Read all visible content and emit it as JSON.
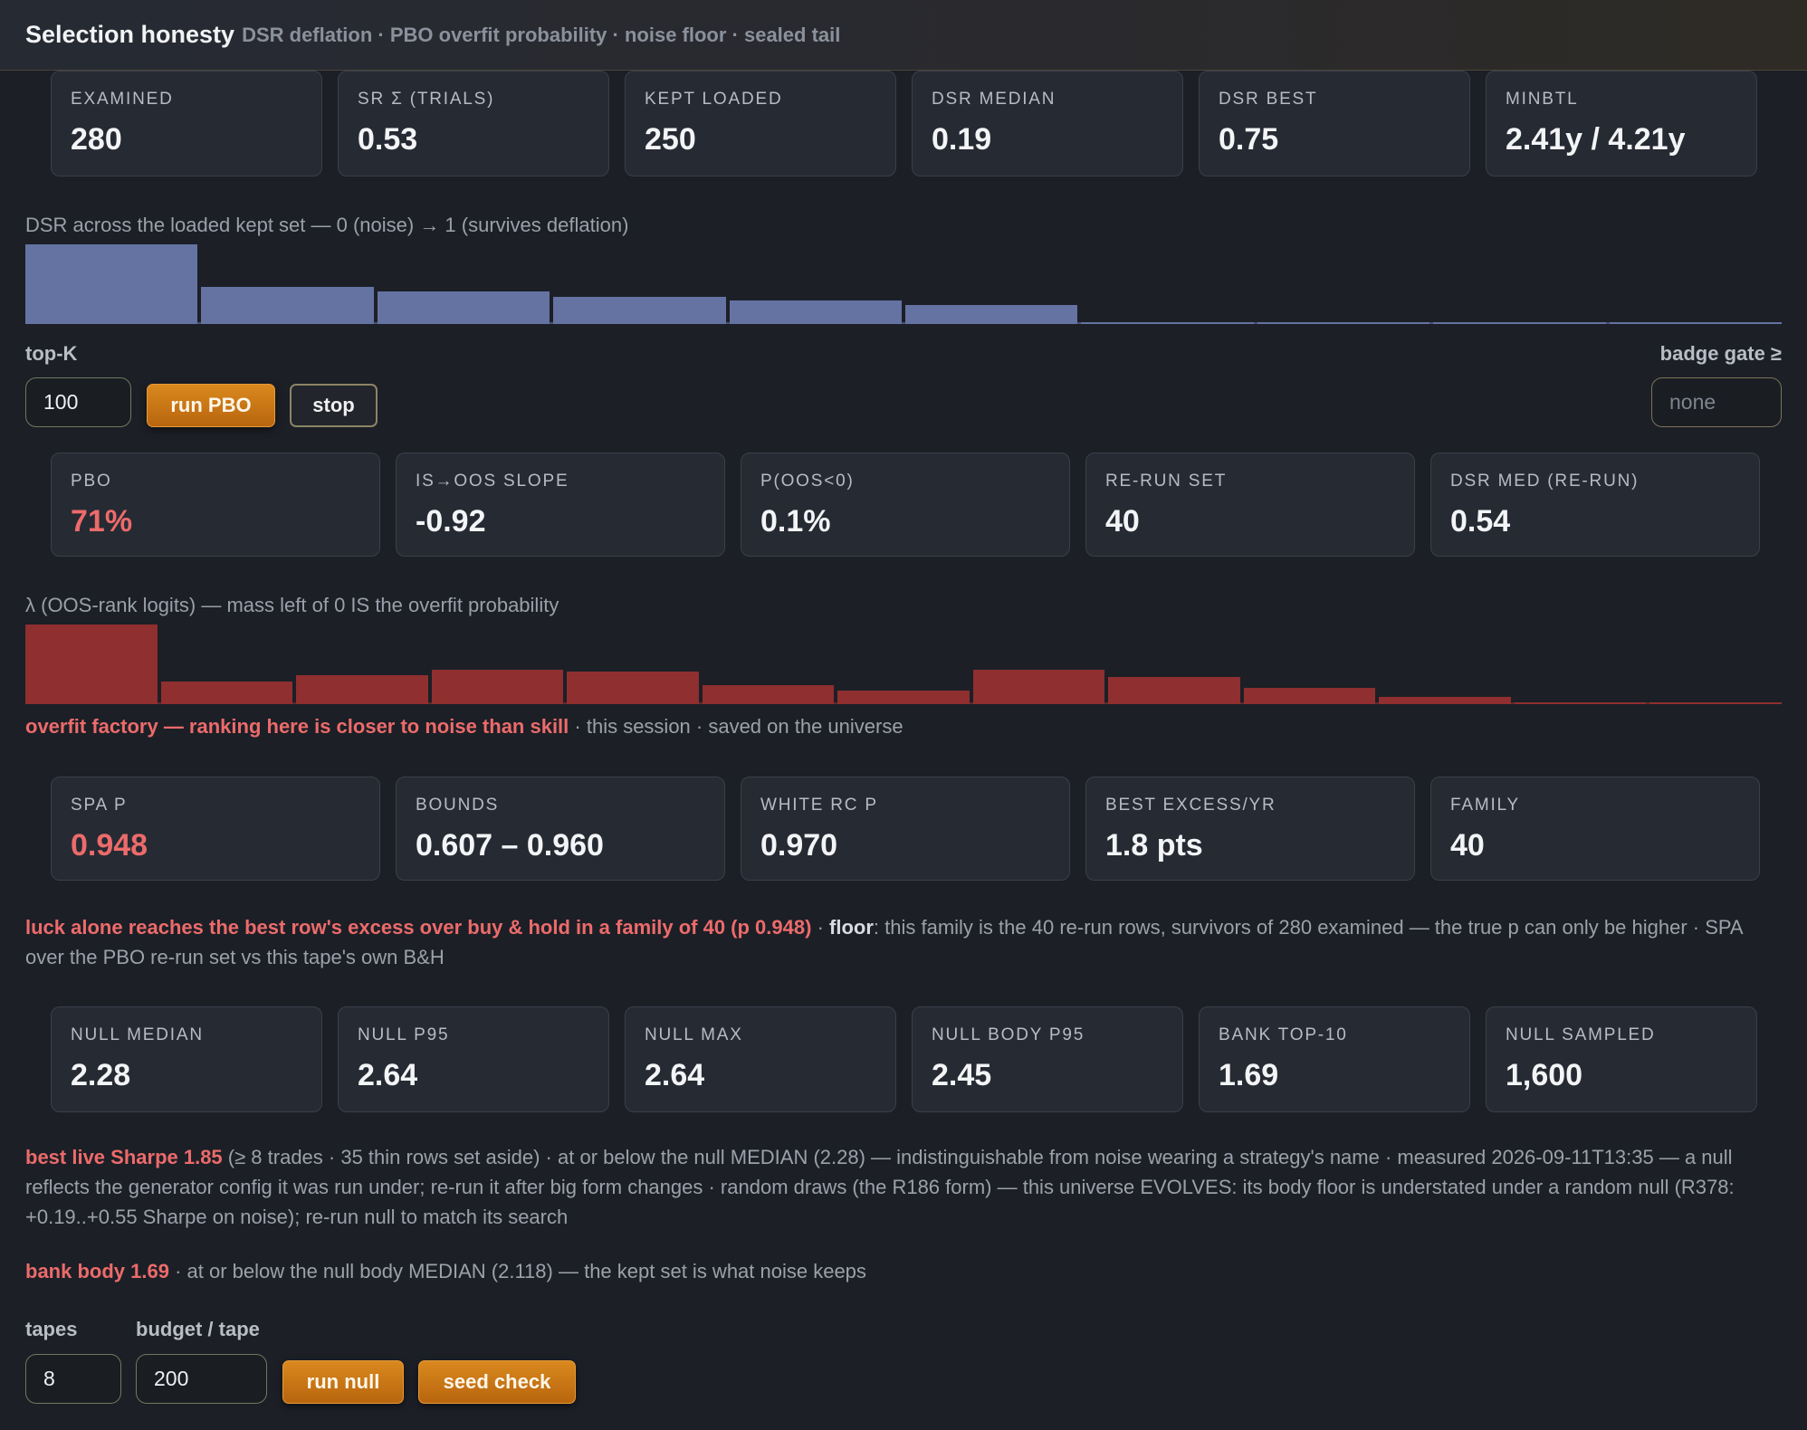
{
  "header": {
    "title": "Selection honesty",
    "subtitle": "DSR deflation · PBO overfit probability · noise floor · sealed tail"
  },
  "dsr_stats": [
    {
      "label": "EXAMINED",
      "value": "280"
    },
    {
      "label": "SR Σ (TRIALS)",
      "value": "0.53"
    },
    {
      "label": "KEPT LOADED",
      "value": "250"
    },
    {
      "label": "DSR MEDIAN",
      "value": "0.19"
    },
    {
      "label": "DSR BEST",
      "value": "0.75"
    },
    {
      "label": "MINBTL",
      "value": "2.41y / 4.21y"
    }
  ],
  "dsr_hist": {
    "caption": "DSR across the loaded kept set — 0 (noise) → 1 (survives deflation)",
    "bar_color": "#6573a3",
    "levels": [
      1.0,
      0.47,
      0.41,
      0.34,
      0.29,
      0.24,
      0.02,
      0.015,
      0.005,
      0.005
    ]
  },
  "pbo_controls": {
    "topk_label": "top-K",
    "topk_value": "100",
    "run_label": "run PBO",
    "stop_label": "stop",
    "badge_label": "badge gate ≥",
    "badge_placeholder": "none"
  },
  "pbo_stats": [
    {
      "label": "PBO",
      "value": "71%"
    },
    {
      "label": "IS→OOS SLOPE",
      "value": "-0.92"
    },
    {
      "label": "P(OOS<0)",
      "value": "0.1%"
    },
    {
      "label": "RE-RUN SET",
      "value": "40"
    },
    {
      "label": "DSR MED (RE-RUN)",
      "value": "0.54"
    }
  ],
  "lambda_hist": {
    "caption": "λ (OOS-rank logits) — mass left of 0 IS the overfit probability",
    "bar_color": "#8f2f2f",
    "levels": [
      1.0,
      0.28,
      0.36,
      0.43,
      0.41,
      0.24,
      0.17,
      0.43,
      0.34,
      0.2,
      0.09,
      0.02,
      0.02
    ]
  },
  "pbo_verdict": {
    "highlight": "overfit factory — ranking here is closer to noise than skill",
    "rest": " · this session · saved on the universe"
  },
  "spa_stats": [
    {
      "label": "SPA P",
      "value": "0.948"
    },
    {
      "label": "BOUNDS",
      "value": "0.607 – 0.960"
    },
    {
      "label": "WHITE RC P",
      "value": "0.970"
    },
    {
      "label": "BEST EXCESS/YR",
      "value": "1.8 pts"
    },
    {
      "label": "FAMILY",
      "value": "40"
    }
  ],
  "spa_note": {
    "highlight": "luck alone reaches the best row's excess over buy & hold in a family of 40 (p 0.948)",
    "sep": " · ",
    "bold": "floor",
    "rest": ": this family is the 40 re-run rows, survivors of 280 examined — the true p can only be higher · SPA over the PBO re-run set vs this tape's own B&H"
  },
  "null_stats": [
    {
      "label": "NULL MEDIAN",
      "value": "2.28"
    },
    {
      "label": "NULL P95",
      "value": "2.64"
    },
    {
      "label": "NULL MAX",
      "value": "2.64"
    },
    {
      "label": "NULL BODY P95",
      "value": "2.45"
    },
    {
      "label": "BANK TOP-10",
      "value": "1.69"
    },
    {
      "label": "NULL SAMPLED",
      "value": "1,600"
    }
  ],
  "null_note": {
    "highlight": "best live Sharpe 1.85",
    "rest": " (≥ 8 trades · 35 thin rows set aside) · at or below the null MEDIAN (2.28) — indistinguishable from noise wearing a strategy's name · measured 2026-09-11T13:35 — a null reflects the generator config it was run under; re-run it after big form changes · random draws (the R186 form) — this universe EVOLVES: its body floor is understated under a random null (R378: +0.19..+0.55 Sharpe on noise); re-run null to match its search"
  },
  "bank_note": {
    "highlight": "bank body 1.69",
    "rest": " · at or below the null body MEDIAN (2.118) — the kept set is what noise keeps"
  },
  "null_controls": {
    "tapes_label": "tapes",
    "tapes_value": "8",
    "budget_label": "budget / tape",
    "budget_value": "200",
    "run_null_label": "run null",
    "seed_check_label": "seed check"
  }
}
